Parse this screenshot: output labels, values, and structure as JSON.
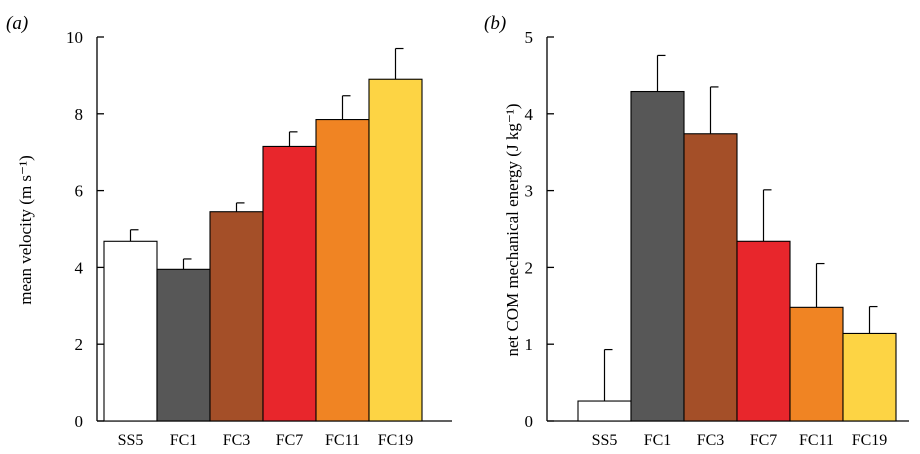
{
  "chart_data": [
    {
      "type": "bar",
      "panel_label": "(a)",
      "ylabel": "mean velocity (m s⁻¹)",
      "xlabel": "",
      "ylim": [
        0,
        10
      ],
      "yticks": [
        0,
        2,
        4,
        6,
        8,
        10
      ],
      "categories": [
        "SS5",
        "FC1",
        "FC3",
        "FC7",
        "FC11",
        "FC19"
      ],
      "values": [
        4.68,
        3.95,
        5.45,
        7.15,
        7.85,
        8.9
      ],
      "error_upper": [
        0.3,
        0.27,
        0.23,
        0.38,
        0.62,
        0.8
      ],
      "colors": [
        "#ffffff",
        "#575757",
        "#a44f28",
        "#e8262c",
        "#f08423",
        "#fdd444"
      ],
      "grid": false,
      "legend": "none"
    },
    {
      "type": "bar",
      "panel_label": "(b)",
      "ylabel": "net COM mechanical energy (J kg⁻¹)",
      "xlabel": "",
      "ylim": [
        0,
        5
      ],
      "yticks": [
        0,
        1,
        2,
        3,
        4,
        5
      ],
      "categories": [
        "SS5",
        "FC1",
        "FC3",
        "FC7",
        "FC11",
        "FC19"
      ],
      "values": [
        0.26,
        4.29,
        3.74,
        2.34,
        1.48,
        1.14
      ],
      "error_upper": [
        0.67,
        0.47,
        0.61,
        0.67,
        0.57,
        0.35
      ],
      "colors": [
        "#ffffff",
        "#575757",
        "#a44f28",
        "#e8262c",
        "#f08423",
        "#fdd444"
      ],
      "grid": false,
      "legend": "none"
    }
  ]
}
